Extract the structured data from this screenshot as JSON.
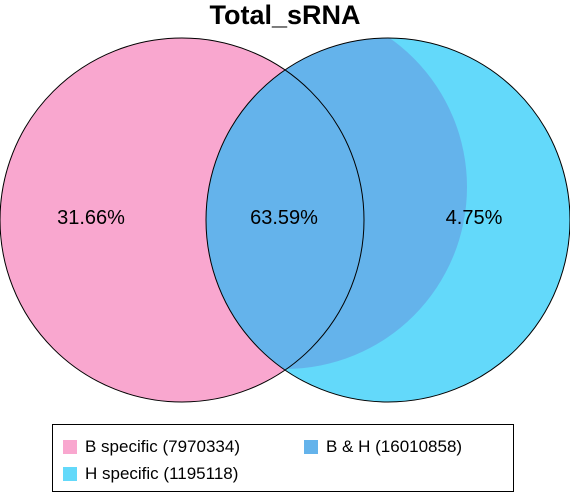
{
  "title": "Total_sRNA",
  "sets": [
    {
      "id": "B",
      "color": "#f9a7cf"
    },
    {
      "id": "H",
      "color": "#63d9fa"
    }
  ],
  "overlap_color": "#64b3eb",
  "regions": {
    "b_only": "31.66%",
    "both": "63.59%",
    "h_only": "4.75%"
  },
  "legend": [
    {
      "label": "B specific (7970334)",
      "color": "#f9a7cf"
    },
    {
      "label": "B & H (16010858)",
      "color": "#64b3eb"
    },
    {
      "label": "H specific (1195118)",
      "color": "#63d9fa"
    }
  ]
}
